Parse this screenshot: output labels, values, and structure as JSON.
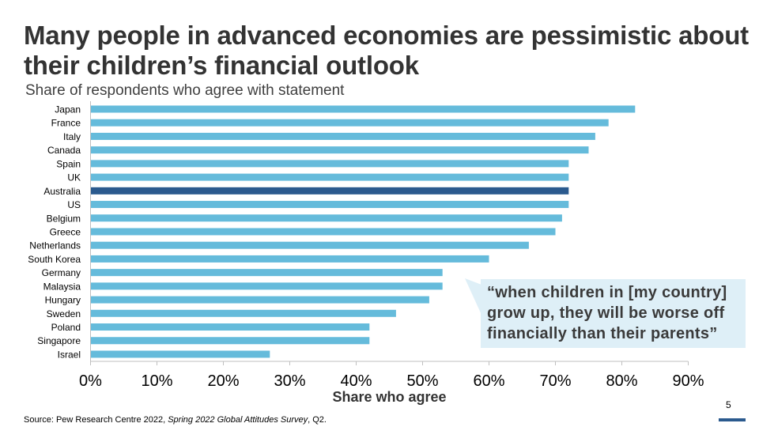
{
  "title": "Many people in advanced economies are pessimistic about their children’s financial outlook",
  "subtitle": "Share of respondents who agree with statement",
  "callout": "“when children in [my country] grow up, they will be worse off financially than their parents”",
  "source": {
    "prefix": "Source: Pew Research Centre 2022, ",
    "italic": "Spring 2022 Global Attitudes Survey",
    "suffix": ", Q2."
  },
  "page_number": "5",
  "colors": {
    "bar": "#65bbdb",
    "highlight": "#2b5a8e",
    "callout_bg": "#deeff7"
  },
  "chart_data": {
    "type": "bar",
    "orientation": "horizontal",
    "categories": [
      "Japan",
      "France",
      "Italy",
      "Canada",
      "Spain",
      "UK",
      "Australia",
      "US",
      "Belgium",
      "Greece",
      "Netherlands",
      "South Korea",
      "Germany",
      "Malaysia",
      "Hungary",
      "Sweden",
      "Poland",
      "Singapore",
      "Israel"
    ],
    "values": [
      82,
      78,
      76,
      75,
      72,
      72,
      72,
      72,
      71,
      70,
      66,
      60,
      53,
      53,
      51,
      46,
      42,
      42,
      27
    ],
    "highlight": "Australia",
    "xlabel": "Share who agree",
    "xlim": [
      0,
      90
    ],
    "ticks": [
      "0%",
      "10%",
      "20%",
      "30%",
      "40%",
      "50%",
      "60%",
      "70%",
      "80%",
      "90%"
    ],
    "grid": false
  }
}
